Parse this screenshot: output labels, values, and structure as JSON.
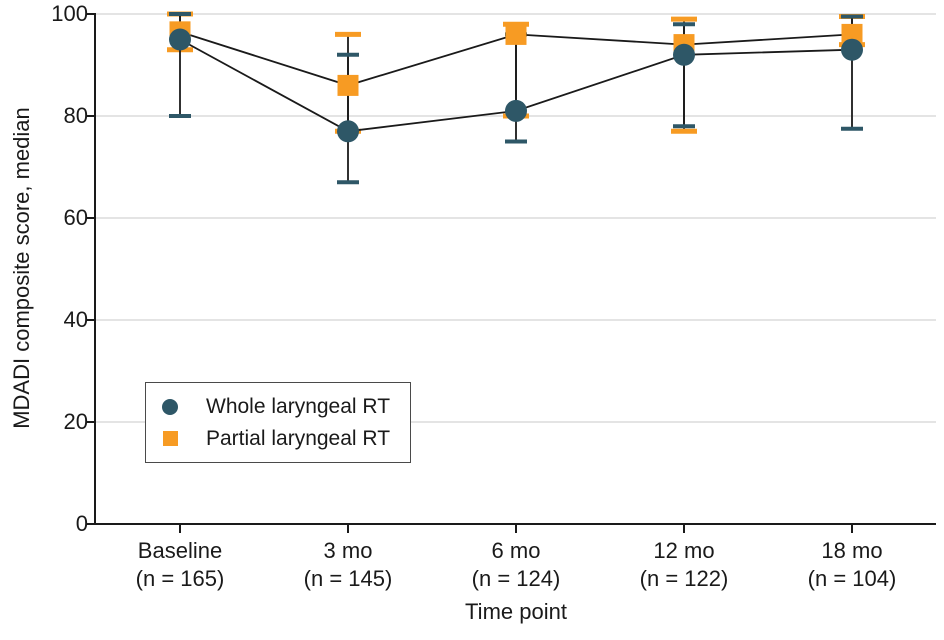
{
  "chart_data": {
    "type": "line",
    "title": "",
    "xlabel": "Time point",
    "ylabel": "MDADI composite score, median",
    "ylim": [
      0,
      100
    ],
    "yticks": [
      0,
      20,
      40,
      60,
      80,
      100
    ],
    "grid": true,
    "legend_position": "inside-lower-left",
    "grid_color": "#dbdbdb",
    "axis_color": "#1a1a1a",
    "connector_color": "#1a1a1a",
    "whisker_line_color": "#1a1a1a",
    "categories": [
      {
        "label": "Baseline",
        "n": "(n = 165)"
      },
      {
        "label": "3 mo",
        "n": "(n = 145)"
      },
      {
        "label": "6 mo",
        "n": "(n = 124)"
      },
      {
        "label": "12 mo",
        "n": "(n = 122)"
      },
      {
        "label": "18 mo",
        "n": "(n = 104)"
      }
    ],
    "series": [
      {
        "name": "Whole laryngeal RT",
        "marker": "circle",
        "color": "#2e5767",
        "median": [
          95,
          77,
          81,
          92,
          93
        ],
        "whisker_low": [
          80,
          67,
          75,
          78,
          77.5
        ],
        "whisker_high": [
          100,
          92,
          96,
          98,
          99.5
        ]
      },
      {
        "name": "Partial laryngeal RT",
        "marker": "square",
        "color": "#f79b23",
        "median": [
          96.5,
          86,
          96,
          94,
          96
        ],
        "whisker_low": [
          93,
          77,
          80,
          77,
          94
        ],
        "whisker_high": [
          100,
          96,
          98,
          99,
          99.5
        ]
      }
    ]
  }
}
